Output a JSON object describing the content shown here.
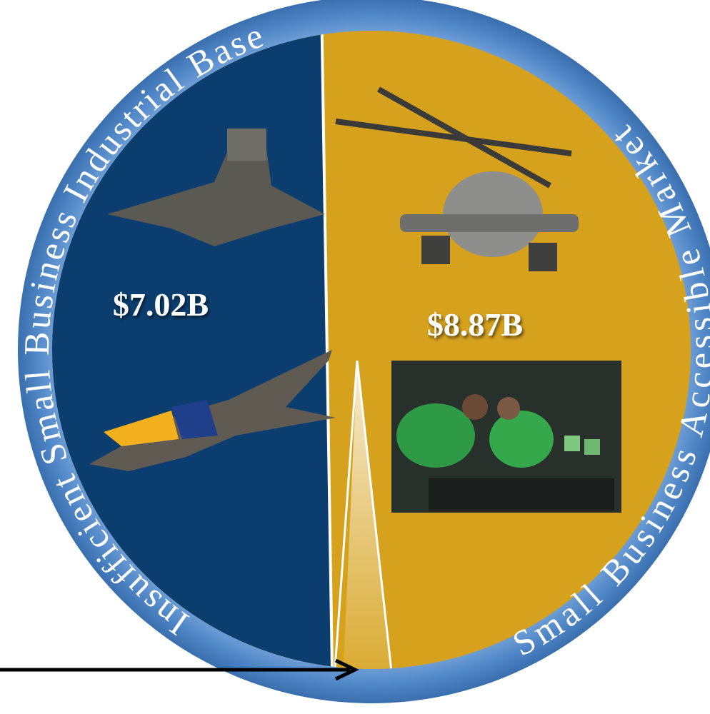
{
  "ring_left": "Insufficient Small Business Industrial Base",
  "ring_right": "Small Business Accessible Market",
  "left_value": "$7.02B",
  "right_value": "$8.87B"
}
